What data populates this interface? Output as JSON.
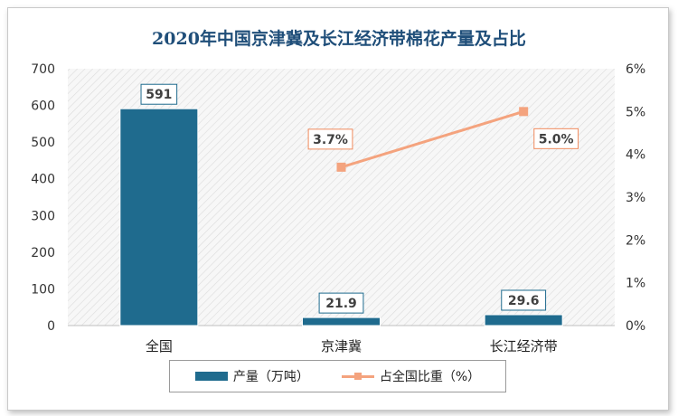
{
  "chart_data": {
    "type": "bar",
    "title": "2020年中国京津冀及长江经济带棉花产量及占比",
    "categories": [
      "全国",
      "京津冀",
      "长江经济带"
    ],
    "series": [
      {
        "name": "产量（万吨）",
        "type": "bar",
        "axis": "left",
        "values": [
          591,
          21.9,
          29.6
        ],
        "labels": [
          "591",
          "21.9",
          "29.6"
        ],
        "color": "#1f6b8e"
      },
      {
        "name": "占全国比重（%）",
        "type": "line",
        "axis": "right",
        "values": [
          null,
          3.7,
          5.0
        ],
        "labels": [
          "",
          "3.7%",
          "5.0%"
        ],
        "color": "#f4a37e"
      }
    ],
    "y_left": {
      "min": 0,
      "max": 700,
      "ticks": [
        0,
        100,
        200,
        300,
        400,
        500,
        600,
        700
      ]
    },
    "y_right": {
      "min": 0,
      "max": 6,
      "ticks": [
        "0%",
        "1%",
        "2%",
        "3%",
        "4%",
        "5%",
        "6%"
      ]
    },
    "legend_position": "bottom",
    "grid": false
  }
}
